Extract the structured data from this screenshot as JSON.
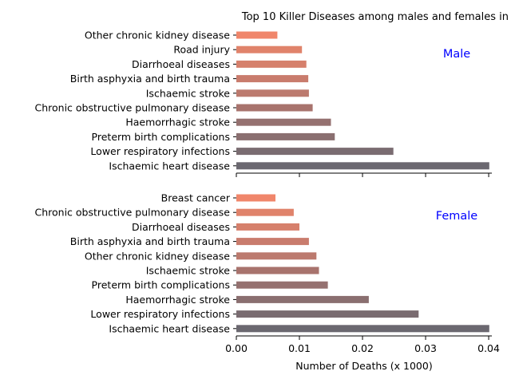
{
  "chart_data": {
    "type": "bar",
    "orientation": "horizontal",
    "title": "Top 10 Killer Diseases among males and females in",
    "xlabel": "Number of Deaths (x 1000)",
    "xlim": [
      0,
      0.04
    ],
    "xticks": [
      "0.00",
      "0.01",
      "0.02",
      "0.03",
      "0.04"
    ],
    "grid": false,
    "panels": [
      {
        "name": "Male",
        "categories": [
          "Other chronic kidney disease",
          "Road injury",
          "Diarrhoeal diseases",
          "Birth asphyxia and birth trauma",
          "Ischaemic stroke",
          "Chronic obstructive pulmonary disease",
          "Haemorrhagic stroke",
          "Preterm birth complications",
          "Lower respiratory infections",
          "Ischaemic heart disease"
        ],
        "values": [
          0.0065,
          0.0104,
          0.0111,
          0.0114,
          0.0115,
          0.0121,
          0.015,
          0.0156,
          0.0249,
          0.0401
        ]
      },
      {
        "name": "Female",
        "categories": [
          "Breast cancer",
          "Chronic obstructive pulmonary disease",
          "Diarrhoeal diseases",
          "Birth asphyxia and birth trauma",
          "Other chronic kidney disease",
          "Ischaemic stroke",
          "Preterm birth complications",
          "Haemorrhagic stroke",
          "Lower respiratory infections",
          "Ischaemic heart disease"
        ],
        "values": [
          0.0062,
          0.0091,
          0.01,
          0.0115,
          0.0127,
          0.0131,
          0.0145,
          0.021,
          0.0289,
          0.0401
        ]
      }
    ],
    "colors": [
      "#f0866b",
      "#e0836b",
      "#d6806c",
      "#c97c6d",
      "#bc7a6e",
      "#a8736d",
      "#957170",
      "#8a6f70",
      "#7a6c71",
      "#6b6870"
    ]
  }
}
